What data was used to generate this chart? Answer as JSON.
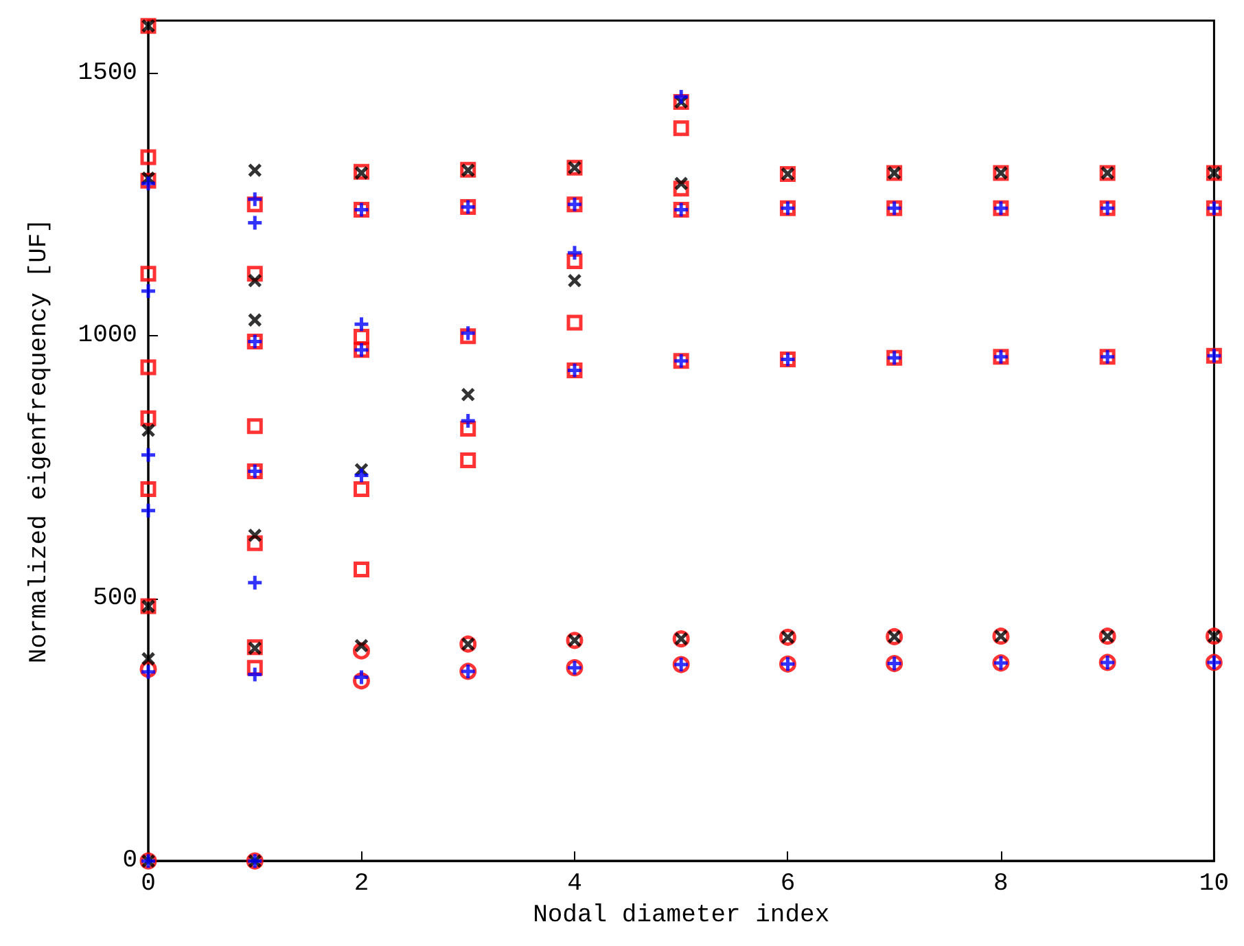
{
  "chart_data": {
    "type": "scatter",
    "xlabel": "Nodal diameter index",
    "ylabel": "Normalized eigenfrequency [UF]",
    "xlim": [
      0,
      10
    ],
    "xticks": [
      0,
      2,
      4,
      6,
      8,
      10
    ],
    "ylim": [
      0,
      1600
    ],
    "yticks": [
      0,
      500,
      1000,
      1500
    ],
    "grid": false,
    "series": [
      {
        "color": "#ff0000",
        "marker": "square",
        "x": [
          0,
          0,
          0,
          0,
          0,
          0,
          0,
          0,
          1,
          1,
          1,
          1,
          1,
          1,
          1,
          1,
          2,
          2,
          2,
          2,
          2,
          2,
          3,
          3,
          3,
          3,
          3,
          4,
          4,
          4,
          4,
          4,
          5,
          5,
          5,
          5,
          5,
          6,
          6,
          6,
          7,
          7,
          7,
          8,
          8,
          8,
          9,
          9,
          9,
          10,
          10,
          10
        ],
        "values": [
          1590,
          1340,
          1295,
          1118,
          940,
          843,
          708,
          485,
          1250,
          1118,
          989,
          828,
          742,
          605,
          407,
          368,
          1312,
          1240,
          998,
          973,
          708,
          555,
          1316,
          1245,
          999,
          823,
          763,
          1320,
          1250,
          1142,
          1025,
          934,
          1445,
          1395,
          1280,
          1240,
          952,
          1308,
          1243,
          955,
          1310,
          1243,
          958,
          1310,
          1243,
          960,
          1310,
          1243,
          960,
          1310,
          1243,
          962
        ]
      },
      {
        "color": "#ff0000",
        "marker": "circle",
        "x": [
          0,
          0,
          1,
          2,
          2,
          3,
          3,
          4,
          4,
          5,
          5,
          6,
          6,
          7,
          7,
          8,
          8,
          9,
          9,
          10,
          10
        ],
        "values": [
          365,
          0,
          0,
          400,
          343,
          413,
          361,
          420,
          368,
          423,
          374,
          426,
          375,
          427,
          376,
          428,
          377,
          428,
          378,
          428,
          378
        ]
      },
      {
        "color": "#000000",
        "marker": "cross",
        "x": [
          0,
          0,
          0,
          0,
          0,
          0,
          1,
          1,
          1,
          1,
          1,
          1,
          2,
          2,
          2,
          3,
          3,
          3,
          4,
          4,
          4,
          5,
          5,
          5,
          6,
          6,
          7,
          7,
          8,
          8,
          9,
          9,
          10,
          10
        ],
        "values": [
          1590,
          1300,
          820,
          485,
          385,
          0,
          1315,
          1105,
          1030,
          620,
          405,
          0,
          1310,
          745,
          410,
          1315,
          888,
          413,
          1320,
          1105,
          420,
          1445,
          1290,
          423,
          1308,
          426,
          1310,
          427,
          1310,
          428,
          1310,
          428,
          1310,
          428
        ]
      },
      {
        "color": "#0000ff",
        "marker": "plus",
        "x": [
          0,
          0,
          0,
          0,
          0,
          0,
          1,
          1,
          1,
          1,
          1,
          1,
          1,
          2,
          2,
          2,
          2,
          2,
          3,
          3,
          3,
          3,
          4,
          4,
          4,
          4,
          5,
          5,
          5,
          5,
          6,
          6,
          6,
          7,
          7,
          7,
          8,
          8,
          8,
          9,
          9,
          9,
          10,
          10,
          10
        ],
        "values": [
          1290,
          1085,
          773,
          667,
          360,
          0,
          1260,
          1215,
          989,
          742,
          530,
          355,
          0,
          1240,
          1022,
          973,
          734,
          350,
          1245,
          1005,
          838,
          361,
          1250,
          1158,
          934,
          368,
          1455,
          1240,
          952,
          374,
          1243,
          955,
          375,
          1243,
          958,
          376,
          1243,
          960,
          377,
          1243,
          960,
          378,
          1243,
          962,
          378
        ]
      }
    ]
  }
}
